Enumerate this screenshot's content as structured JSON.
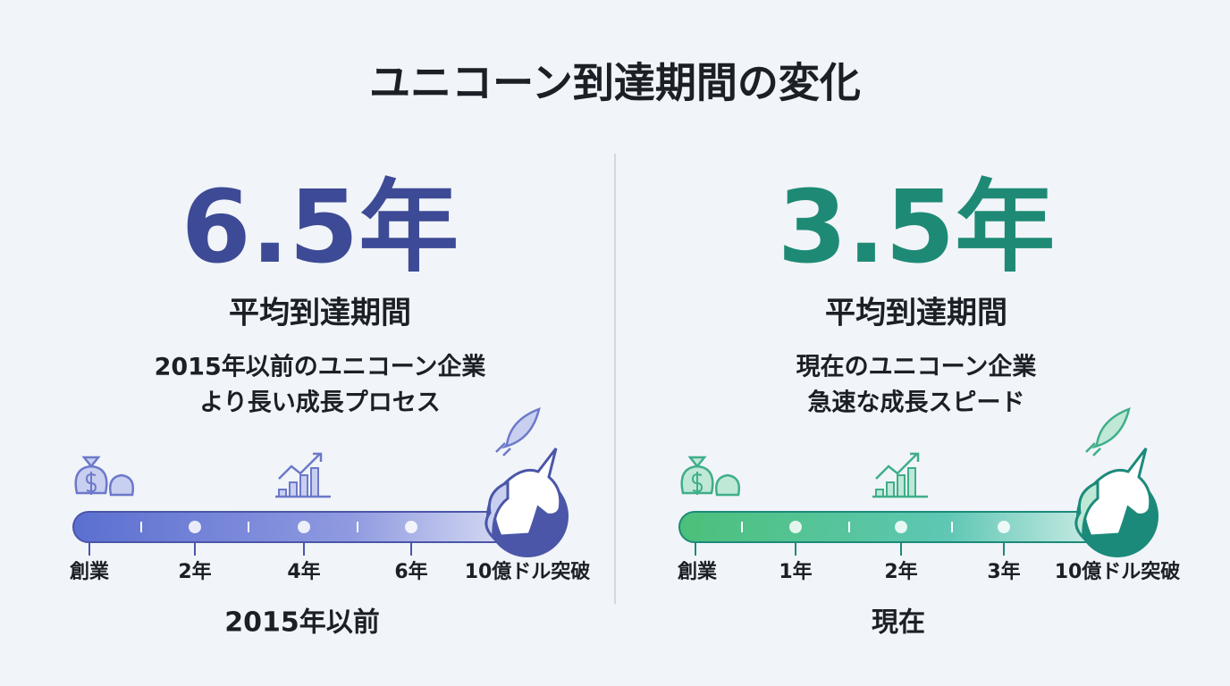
{
  "title": "ユニコーン到達期間の変化",
  "panels": [
    {
      "big": "6.5年",
      "label": "平均到達期間",
      "description": [
        "2015年以前のユニコーン企業",
        "より長い成長プロセス"
      ],
      "milestones": [
        "創業",
        "2年",
        "4年",
        "6年",
        "10億ドル突破"
      ],
      "era": "2015年以前"
    },
    {
      "big": "3.5年",
      "label": "平均到達期間",
      "description": [
        "現在のユニコーン企業",
        "急速な成長スピード"
      ],
      "milestones": [
        "創業",
        "1年",
        "2年",
        "3年",
        "10億ドル突破"
      ],
      "era": "現在"
    }
  ]
}
